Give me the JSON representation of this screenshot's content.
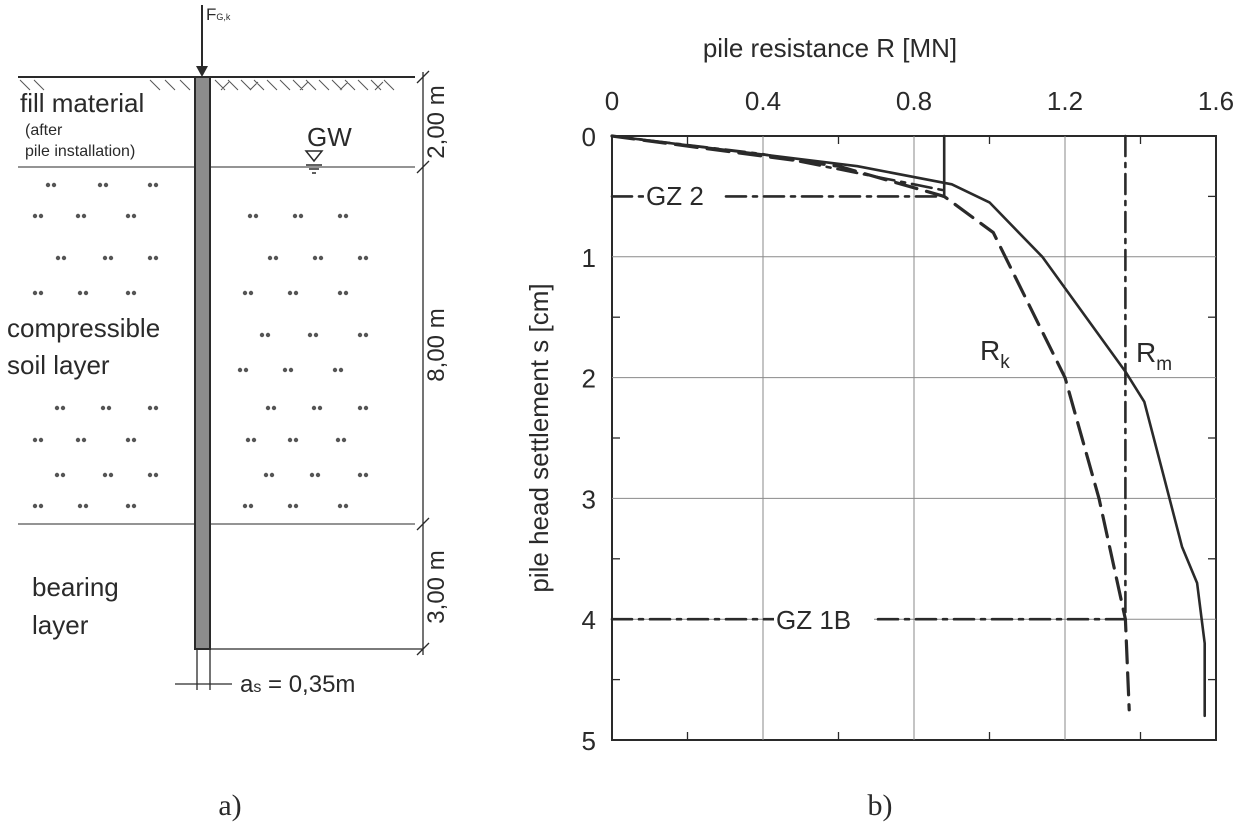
{
  "panel_a": {
    "caption": "a)",
    "load_label": "F",
    "load_label_sub": "G,k",
    "groundwater_label": "GW",
    "layers": [
      {
        "name": "fill material",
        "note_line1": "(after",
        "note_line2": "pile installation)",
        "thickness": "2,00 m"
      },
      {
        "name_line1": "compressible",
        "name_line2": "soil layer",
        "thickness": "8,00 m"
      },
      {
        "name_line1": "bearing",
        "name_line2": "layer",
        "thickness": "3,00 m"
      }
    ],
    "pile_diameter_label": "a",
    "pile_diameter_sub": "s",
    "pile_diameter_value": " = 0,35m"
  },
  "panel_b": {
    "caption": "b)",
    "limit_states": [
      "GZ 2",
      "GZ 1B"
    ],
    "curve_labels": {
      "characteristic": {
        "main": "R",
        "sub": "k"
      },
      "measured": {
        "main": "R",
        "sub": "m"
      }
    }
  },
  "chart_data": {
    "type": "line",
    "xlabel": "pile resistance R [MN]",
    "ylabel": "pile head settlement s [cm]",
    "x_axis_position": "top",
    "y_axis_inverted": true,
    "xlim": [
      0,
      1.6
    ],
    "ylim": [
      0,
      5
    ],
    "x_ticks": [
      "0",
      "0.4",
      "0.8",
      "1.2",
      "1.6"
    ],
    "y_ticks": [
      "0",
      "1",
      "2",
      "3",
      "4",
      "5"
    ],
    "grid": true,
    "series": [
      {
        "name": "R_m",
        "style": "solid",
        "x": [
          0,
          0.65,
          0.9,
          1.0,
          1.14,
          1.36,
          1.41,
          1.46,
          1.51,
          1.55,
          1.57,
          1.57
        ],
        "y": [
          0,
          0.25,
          0.4,
          0.55,
          1.0,
          1.95,
          2.2,
          2.8,
          3.4,
          3.7,
          4.2,
          4.8
        ]
      },
      {
        "name": "R_k",
        "style": "dashed",
        "x": [
          0,
          0.6,
          0.88,
          1.01,
          1.2,
          1.29,
          1.36,
          1.37
        ],
        "y": [
          0,
          0.25,
          0.5,
          0.8,
          2.0,
          3.0,
          4.0,
          4.75
        ]
      },
      {
        "name": "GZ 2 curve",
        "style": "dash-dot",
        "x": [
          0,
          0.4,
          0.88,
          0.88
        ],
        "y": [
          0,
          0.15,
          0.45,
          0.5
        ]
      },
      {
        "name": "R_k,2 vertical",
        "style": "solid",
        "x": [
          0.88,
          0.88
        ],
        "y": [
          0,
          0.5
        ]
      },
      {
        "name": "R_k,1B vertical",
        "style": "dash-dot",
        "x": [
          1.36,
          1.36
        ],
        "y": [
          0,
          4.0
        ]
      },
      {
        "name": "GZ 2",
        "style": "dash-dot",
        "x": [
          0,
          0.88
        ],
        "y": [
          0.5,
          0.5
        ]
      },
      {
        "name": "GZ 1B",
        "style": "dash-dot",
        "x": [
          0,
          1.36
        ],
        "y": [
          4.0,
          4.0
        ]
      }
    ]
  }
}
